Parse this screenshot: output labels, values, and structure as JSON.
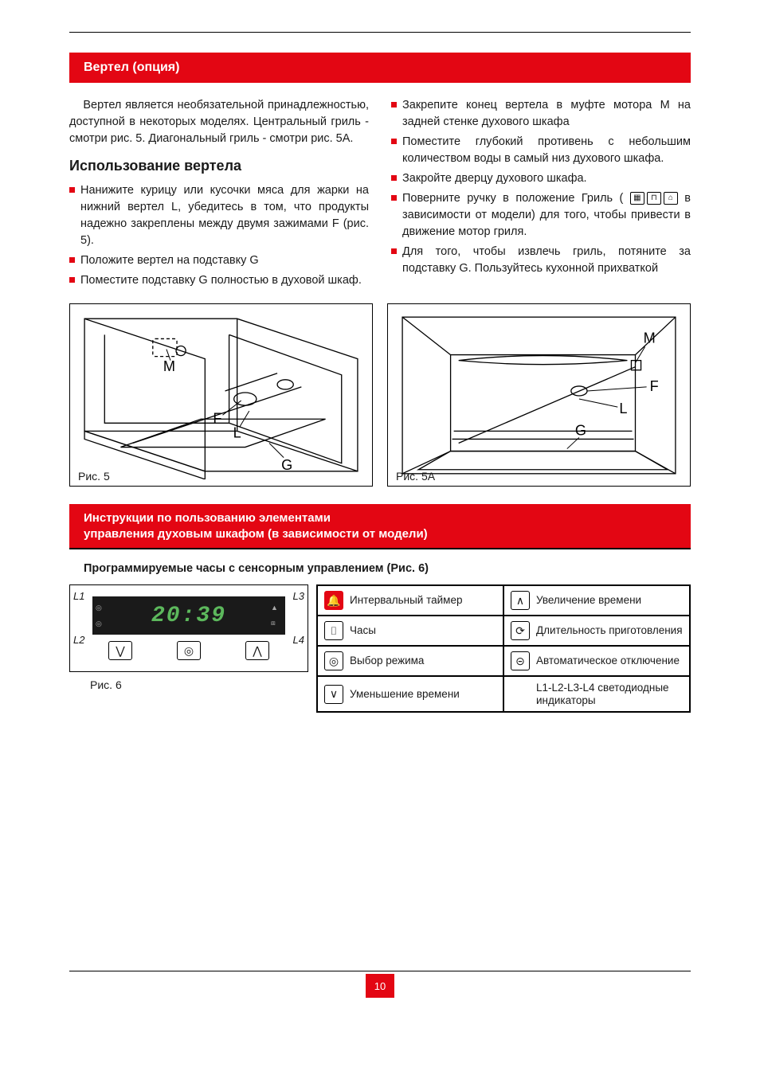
{
  "page_number": "10",
  "colors": {
    "accent": "#e30613",
    "text": "#1a1a1a",
    "lcd_bg": "#1a1a1a",
    "lcd_fg": "#5cb85c"
  },
  "section1": {
    "title": "Вертел (опция)",
    "intro": "Вертел является необязательной принадлежностью, доступной в некоторых моделях. Центральный гриль - смотри рис. 5. Диагональный гриль - смотри рис. 5А.",
    "subheading": "Использование вертела",
    "left_bullets": [
      "Нанижите курицу или кусочки мяса для жарки на нижний вертел L, убедитесь в том, что продукты надежно закреплены между двумя зажимами F (рис. 5).",
      "Положите вертел на подставку G",
      "Поместите подставку G полностью в духовой шкаф."
    ],
    "right_bullets": [
      "Закрепите конец вертела в муфте мотора М на задней стенке духового шкафа",
      "Поместите глубокий противень с небольшим количеством воды в самый низ духового шкафа.",
      "Закройте дверцу духового шкафа.",
      "Поверните ручку в положение Гриль ( |MODE_ICONS| в зависимости от модели) для того, чтобы привести в движение мотор гриля.",
      "Для того, чтобы извлечь гриль, потяните за подставку G. Пользуйтесь кухонной прихваткой"
    ]
  },
  "fig5": {
    "caption": "Рис. 5",
    "labels": {
      "M": "M",
      "F": "F",
      "L": "L",
      "G": "G"
    }
  },
  "fig5a": {
    "caption": "Рис. 5А",
    "labels": {
      "M": "M",
      "F": "F",
      "L": "L",
      "G": "G"
    }
  },
  "section2": {
    "title_line1": "Инструкции по пользованию элементами",
    "title_line2": "управления духовым шкафом (в зависимости от модели)",
    "subheading": "Программируемые часы с сенсорным управлением (Рис. 6)"
  },
  "fig6": {
    "caption": "Рис. 6",
    "time": "20:39",
    "pointers": {
      "L1": "L1",
      "L2": "L2",
      "L3": "L3",
      "L4": "L4"
    },
    "legend": [
      {
        "icon": "bell",
        "label": "Интервальный таймер"
      },
      {
        "icon": "up",
        "label": "Увеличение времени"
      },
      {
        "icon": "clock",
        "label": "Часы"
      },
      {
        "icon": "dur",
        "label": "Длительность приготовления"
      },
      {
        "icon": "mode",
        "label": "Выбор режима"
      },
      {
        "icon": "auto",
        "label": "Автоматическое отключение"
      },
      {
        "icon": "down",
        "label": "Уменьшение времени"
      },
      {
        "icon": "text",
        "label": "L1-L2-L3-L4 светодиодные индикаторы"
      }
    ]
  }
}
